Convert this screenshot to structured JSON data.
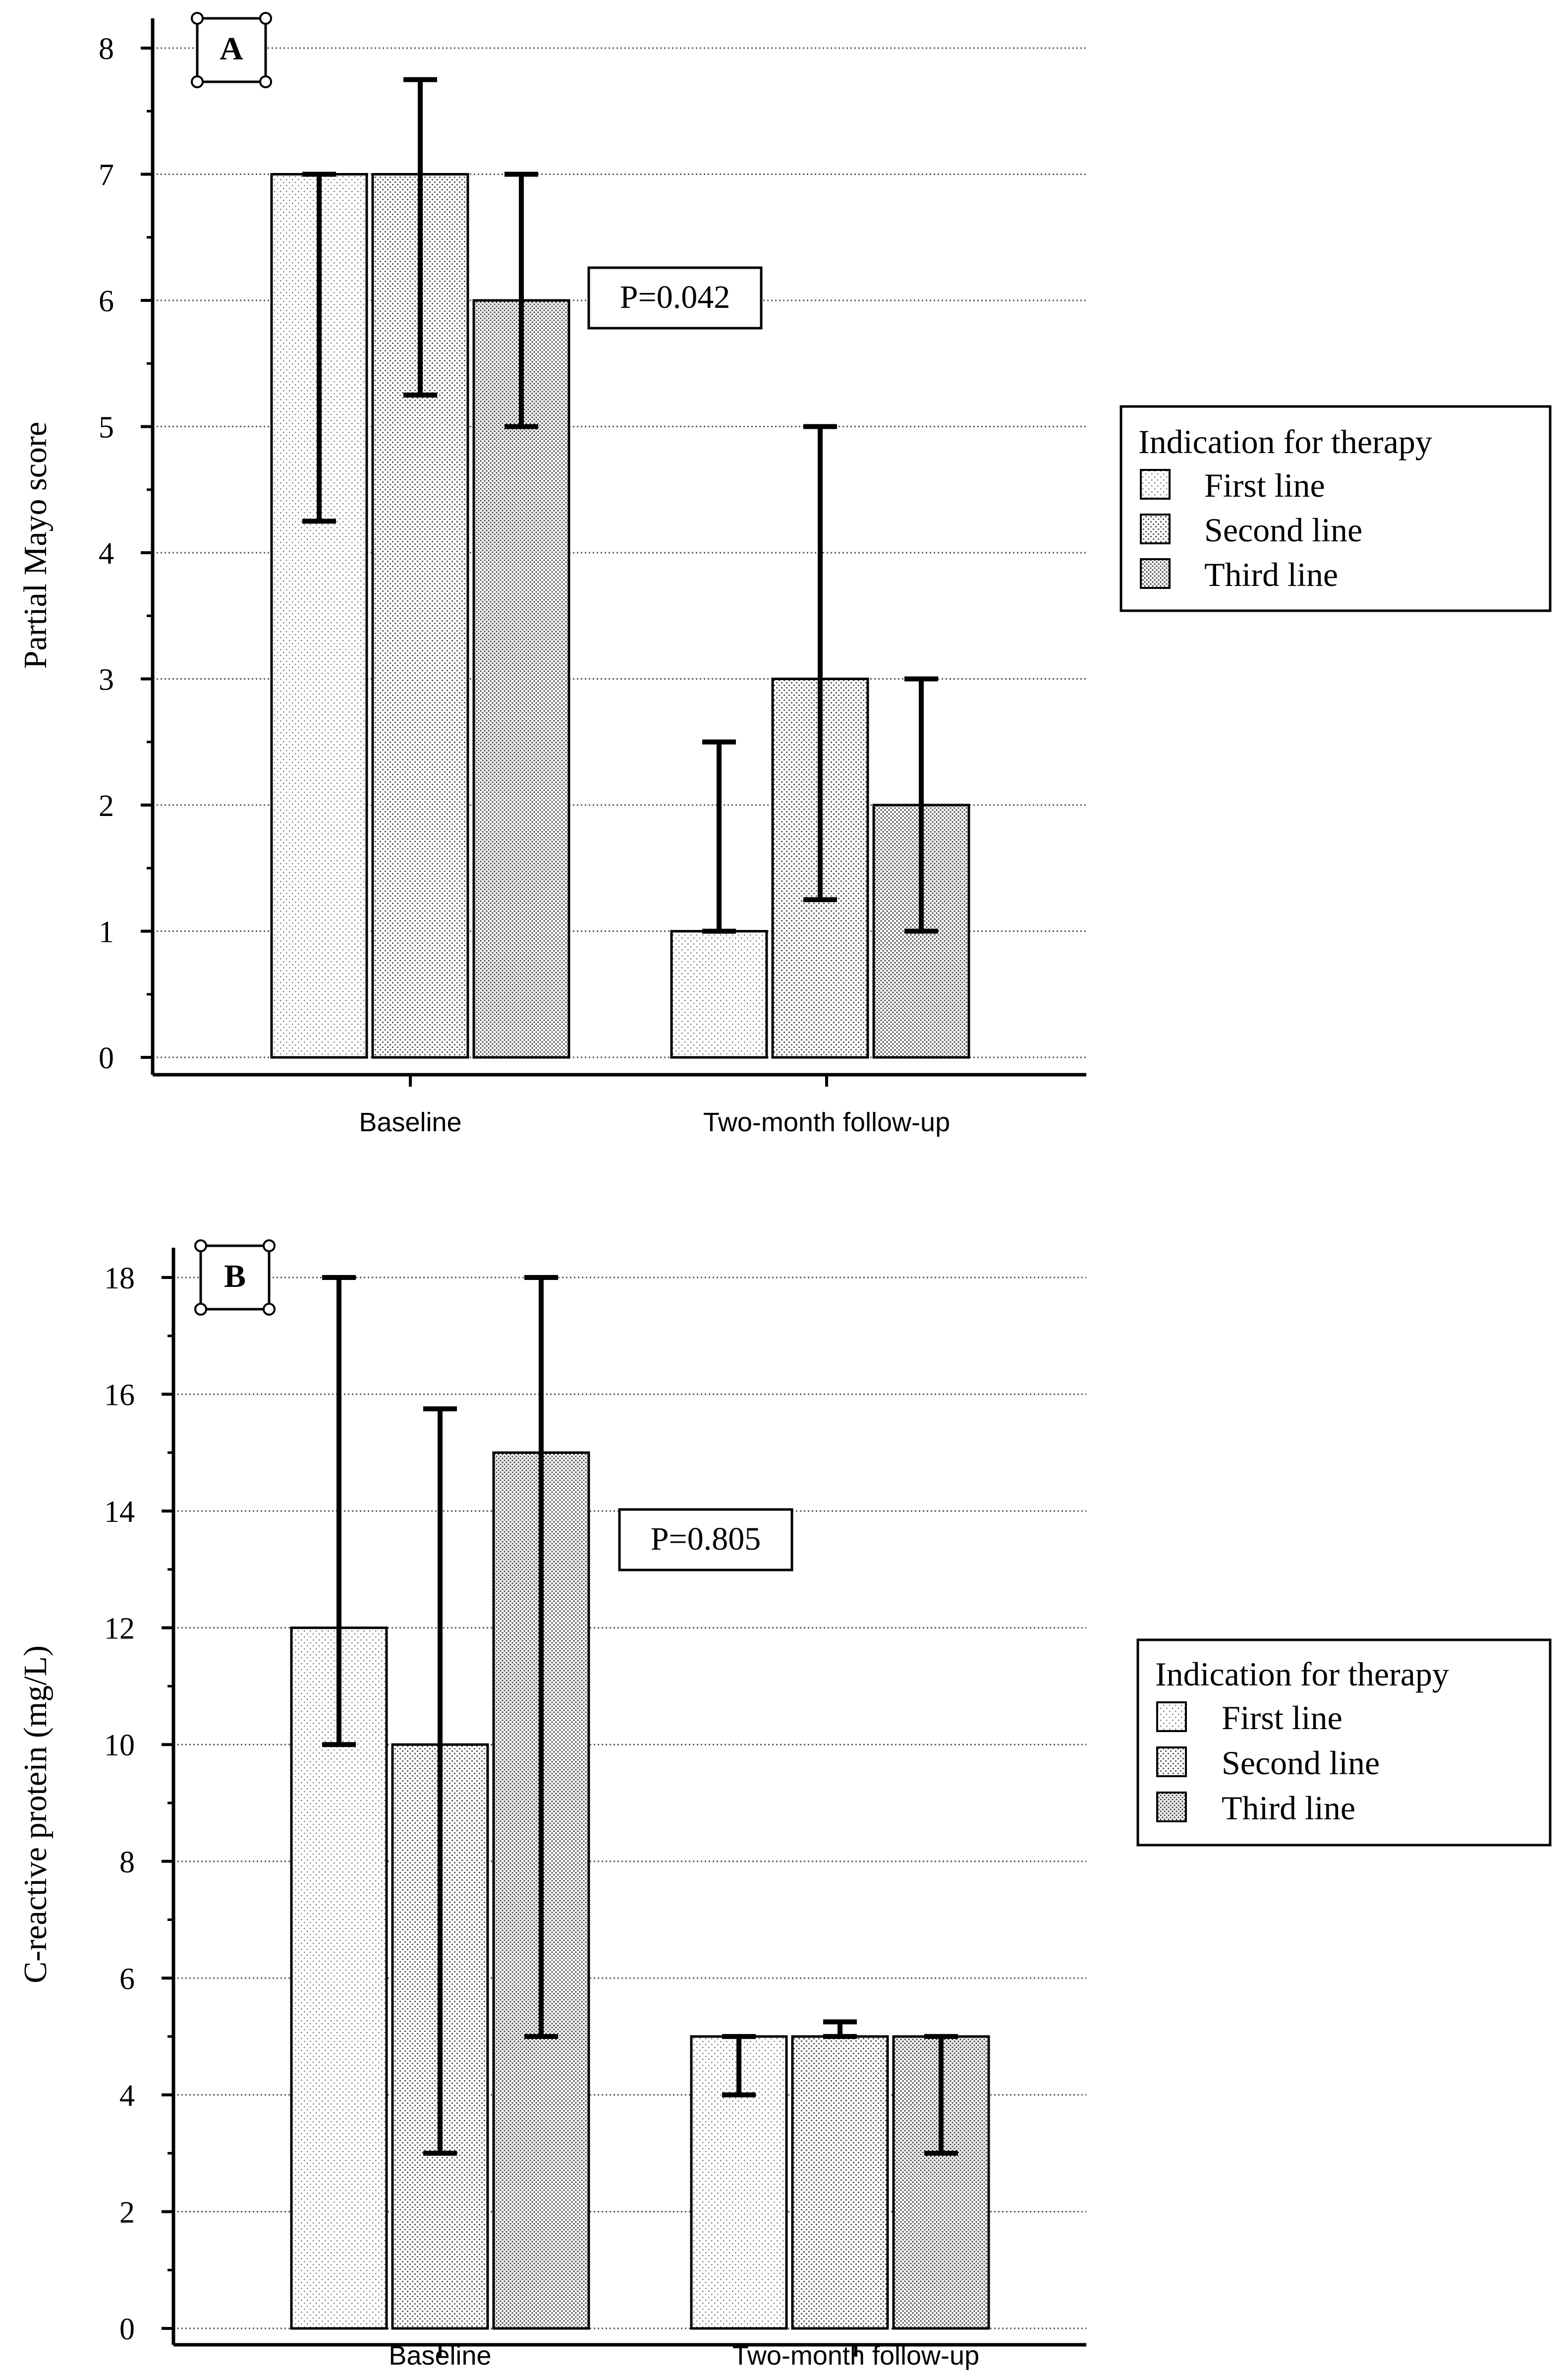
{
  "chart_data": [
    {
      "type": "bar",
      "panel_label": "A",
      "title": "",
      "xlabel": "",
      "ylabel": "Partial Mayo score",
      "ylim": [
        0,
        8
      ],
      "yticks": [
        "0",
        "1",
        "2",
        "3",
        "4",
        "5",
        "6",
        "7",
        "8"
      ],
      "grid": "horizontal dotted",
      "categories": [
        "Baseline",
        "Two-month follow-up"
      ],
      "series": [
        {
          "name": "First line",
          "values": [
            7,
            1
          ],
          "err_low": [
            4.25,
            1
          ],
          "err_high": [
            7,
            2.5
          ]
        },
        {
          "name": "Second line",
          "values": [
            7,
            3
          ],
          "err_low": [
            5.25,
            1.25
          ],
          "err_high": [
            7.75,
            5
          ]
        },
        {
          "name": "Third line",
          "values": [
            6,
            2
          ],
          "err_low": [
            5,
            1
          ],
          "err_high": [
            7,
            3
          ]
        }
      ],
      "annotation": "P=0.042",
      "legend": {
        "title": "Indication for therapy",
        "placement": "right"
      }
    },
    {
      "type": "bar",
      "panel_label": "B",
      "title": "",
      "xlabel": "",
      "ylabel": "C-reactive protein (mg/L)",
      "ylim": [
        0,
        18
      ],
      "yticks": [
        "0",
        "2",
        "4",
        "6",
        "8",
        "10",
        "12",
        "14",
        "16",
        "18"
      ],
      "grid": "horizontal dotted",
      "categories": [
        "Baseline",
        "Two-month follow-up"
      ],
      "series": [
        {
          "name": "First line",
          "values": [
            12,
            5
          ],
          "err_low": [
            10,
            4
          ],
          "err_high": [
            18,
            5
          ]
        },
        {
          "name": "Second line",
          "values": [
            10,
            5
          ],
          "err_low": [
            3,
            5
          ],
          "err_high": [
            15.75,
            5.25
          ]
        },
        {
          "name": "Third line",
          "values": [
            15,
            5
          ],
          "err_low": [
            5,
            3
          ],
          "err_high": [
            18,
            5
          ]
        }
      ],
      "annotation": "P=0.805",
      "legend": {
        "title": "Indication for therapy",
        "placement": "right"
      }
    }
  ],
  "colors": {
    "axis": "#000000",
    "grid": "#555555",
    "pattern_light": "#6a6a6a",
    "pattern_medium": "#555555",
    "pattern_dark": "#3c3c3c"
  }
}
